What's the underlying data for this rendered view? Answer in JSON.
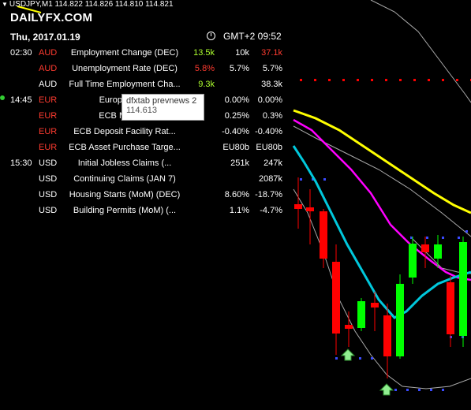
{
  "symbol": {
    "label": "USDJPY,M1",
    "prices": "114.822 114.826 114.810 114.821"
  },
  "logo": {
    "daily": "DAILY",
    "fx": "FX",
    "com": ".COM"
  },
  "header": {
    "date": "Thu, 2017.01.19",
    "timezone": "GMT+2 09:52"
  },
  "events": [
    {
      "time": "02:30",
      "currency": "AUD",
      "currency_color": "#ff3b30",
      "event": "Employment Change (DEC)",
      "actual": "13.5k",
      "actual_color": "#adff2f",
      "forecast": "10k",
      "previous": "37.1k",
      "previous_color": "#ff3b30",
      "live": false
    },
    {
      "time": "",
      "currency": "AUD",
      "currency_color": "#ff3b30",
      "event": "Unemployment Rate (DEC)",
      "actual": "5.8%",
      "actual_color": "#ff3b30",
      "forecast": "5.7%",
      "previous": "5.7%",
      "previous_color": "#ffffff",
      "live": false
    },
    {
      "time": "",
      "currency": "AUD",
      "currency_color": "#ffffff",
      "event": "Full Time Employment Cha...",
      "actual": "9.3k",
      "actual_color": "#adff2f",
      "forecast": "",
      "previous": "38.3k",
      "previous_color": "#ffffff",
      "live": false
    },
    {
      "time": "14:45",
      "currency": "EUR",
      "currency_color": "#ff3b30",
      "event": "European Ce",
      "actual": "",
      "actual_color": "#ffffff",
      "forecast": "0.00%",
      "previous": "0.00%",
      "previous_color": "#ffffff",
      "live": true
    },
    {
      "time": "",
      "currency": "EUR",
      "currency_color": "#ff3b30",
      "event": "ECB Margina",
      "actual": "",
      "actual_color": "#ffffff",
      "forecast": "0.25%",
      "previous": "0.3%",
      "previous_color": "#ffffff",
      "live": false
    },
    {
      "time": "",
      "currency": "EUR",
      "currency_color": "#ff3b30",
      "event": "ECB Deposit Facility Rat...",
      "actual": "",
      "actual_color": "#ffffff",
      "forecast": "-0.40%",
      "previous": "-0.40%",
      "previous_color": "#ffffff",
      "live": false
    },
    {
      "time": "",
      "currency": "EUR",
      "currency_color": "#ff3b30",
      "event": "ECB Asset Purchase Targe...",
      "actual": "",
      "actual_color": "#ffffff",
      "forecast": "EU80b",
      "previous": "EU80b",
      "previous_color": "#ffffff",
      "live": false
    },
    {
      "time": "15:30",
      "currency": "USD",
      "currency_color": "#ffffff",
      "event": "Initial Jobless Claims (...",
      "actual": "",
      "actual_color": "#ffffff",
      "forecast": "251k",
      "previous": "247k",
      "previous_color": "#ffffff",
      "live": false
    },
    {
      "time": "",
      "currency": "USD",
      "currency_color": "#ffffff",
      "event": "Continuing Claims (JAN 7)",
      "actual": "",
      "actual_color": "#ffffff",
      "forecast": "",
      "previous": "2087k",
      "previous_color": "#ffffff",
      "live": false
    },
    {
      "time": "",
      "currency": "USD",
      "currency_color": "#ffffff",
      "event": "Housing Starts (MoM) (DEC)",
      "actual": "",
      "actual_color": "#ffffff",
      "forecast": "8.60%",
      "previous": "-18.7%",
      "previous_color": "#ffffff",
      "live": false
    },
    {
      "time": "",
      "currency": "USD",
      "currency_color": "#ffffff",
      "event": "Building Permits (MoM) (...",
      "actual": "",
      "actual_color": "#ffffff",
      "forecast": "1.1%",
      "previous": "-4.7%",
      "previous_color": "#ffffff",
      "live": false
    }
  ],
  "tooltip": {
    "name": "dfxtab prevnews 2",
    "value": "114.613"
  },
  "colors": {
    "up_candle": "#00ff00",
    "down_candle": "#ff0000",
    "ma_slow": "#ffff00",
    "ma_mid": "#ff00ff",
    "ma_fast": "#00c8dc",
    "signal_arrow": "#7cfc00"
  }
}
